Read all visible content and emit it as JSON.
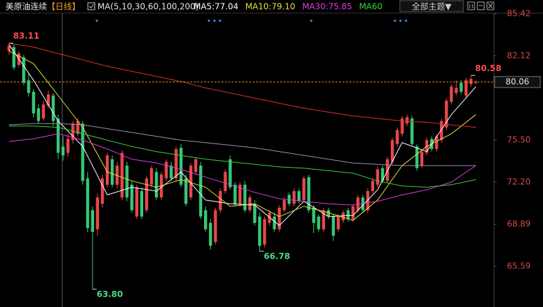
{
  "chart_data": {
    "type": "candlestick",
    "title": "美原油连续",
    "period": "【日线】",
    "ma_label": "MA(5,10,30,60,100,200)",
    "theme_button": "全部主题▼",
    "up_color": "#e8474a",
    "down_color": "#35c978",
    "open": [
      82.5,
      82.8,
      81.4,
      82.0,
      80.2,
      79.3,
      78.0,
      77.2,
      78.2,
      79.0,
      77.2,
      75.0,
      74.5,
      75.5,
      76.0,
      76.8,
      72.5,
      70.0,
      68.5,
      70.5,
      72.0,
      74.0,
      72.0,
      71.0,
      73.5,
      72.0,
      69.5,
      71.5,
      70.0,
      72.0,
      73.0,
      71.0,
      72.5,
      73.5,
      72.5,
      74.9,
      72.5,
      71.0,
      73.0,
      73.5,
      70.0,
      69.0,
      67.5,
      70.0,
      71.5,
      74.0,
      72.0,
      70.5,
      72.0,
      70.0,
      70.5,
      69.5,
      67.3,
      69.0,
      69.5,
      68.5,
      70.0,
      71.2,
      70.5,
      71.5,
      70.8,
      72.6,
      70.2,
      69.5,
      68.5,
      70.0,
      69.5,
      68.5,
      69.2,
      70.0,
      69.3,
      70.0,
      71.0,
      70.0,
      71.5,
      72.0,
      73.3,
      72.3,
      73.8,
      75.2,
      76.0,
      76.8,
      77.2,
      75.0,
      73.5,
      74.5,
      75.6,
      74.8,
      75.5,
      76.5,
      78.5,
      79.2,
      80.0,
      79.0,
      79.9,
      80.0
    ],
    "high": [
      83.11,
      83.0,
      82.5,
      82.2,
      80.8,
      79.5,
      78.3,
      78.6,
      79.4,
      79.2,
      77.5,
      75.8,
      76.0,
      77.0,
      77.2,
      77.0,
      73.0,
      70.3,
      71.3,
      72.8,
      74.5,
      74.3,
      73.8,
      74.7,
      73.8,
      72.3,
      72.0,
      71.8,
      72.7,
      73.5,
      73.3,
      73.0,
      74.0,
      73.8,
      75.0,
      75.2,
      72.8,
      73.7,
      74.2,
      73.8,
      70.3,
      69.3,
      70.2,
      71.7,
      73.2,
      74.3,
      72.2,
      72.2,
      72.3,
      71.2,
      70.8,
      69.8,
      69.5,
      70.0,
      69.8,
      70.4,
      71.0,
      71.4,
      71.7,
      71.7,
      72.7,
      72.8,
      70.4,
      69.7,
      70.2,
      70.2,
      69.7,
      69.7,
      70.0,
      70.2,
      70.5,
      71.2,
      71.2,
      71.7,
      72.5,
      73.4,
      73.5,
      74.2,
      75.7,
      76.5,
      77.4,
      77.5,
      77.4,
      75.2,
      74.8,
      75.7,
      75.8,
      76.0,
      77.2,
      78.8,
      79.9,
      80.2,
      80.2,
      80.4,
      80.58,
      80.2
    ],
    "low": [
      82.2,
      81.0,
      81.2,
      79.8,
      78.9,
      77.3,
      76.8,
      77.0,
      78.0,
      76.6,
      74.0,
      73.9,
      74.2,
      75.2,
      75.8,
      72.0,
      68.3,
      63.8,
      68.0,
      70.2,
      71.8,
      71.8,
      71.7,
      70.8,
      70.7,
      69.8,
      69.3,
      69.3,
      69.8,
      71.8,
      70.8,
      70.8,
      72.3,
      72.3,
      72.3,
      71.8,
      70.3,
      70.8,
      72.8,
      69.3,
      68.3,
      66.9,
      67.3,
      69.8,
      71.3,
      71.6,
      70.3,
      70.3,
      69.8,
      69.8,
      68.8,
      66.78,
      67.1,
      68.8,
      68.3,
      68.3,
      69.8,
      70.3,
      70.3,
      70.5,
      70.6,
      69.8,
      68.2,
      68.3,
      68.3,
      69.3,
      67.6,
      68.3,
      69.0,
      69.1,
      69.1,
      69.8,
      69.8,
      69.8,
      71.3,
      71.8,
      72.1,
      72.1,
      73.6,
      75.0,
      75.8,
      76.6,
      75.0,
      73.1,
      73.3,
      74.3,
      74.6,
      74.6,
      75.3,
      76.3,
      78.3,
      79.0,
      79.1,
      78.8,
      79.7,
      79.9
    ],
    "close": [
      82.9,
      81.2,
      82.3,
      80.0,
      79.2,
      77.6,
      77.0,
      78.3,
      79.1,
      77.0,
      74.5,
      74.3,
      75.6,
      76.8,
      77.0,
      72.3,
      68.6,
      68.3,
      71.0,
      72.5,
      74.3,
      72.0,
      73.5,
      74.5,
      71.0,
      70.0,
      71.8,
      69.5,
      72.5,
      73.3,
      71.0,
      72.8,
      73.8,
      72.5,
      74.8,
      72.0,
      70.5,
      73.5,
      74.0,
      69.5,
      68.5,
      67.2,
      70.0,
      71.5,
      73.0,
      71.8,
      70.5,
      72.0,
      70.0,
      71.0,
      69.0,
      67.2,
      69.3,
      69.8,
      68.5,
      70.2,
      70.8,
      70.5,
      71.5,
      70.7,
      72.5,
      70.0,
      69.0,
      68.5,
      70.0,
      69.5,
      68.0,
      69.5,
      69.8,
      69.3,
      70.3,
      71.0,
      70.0,
      71.5,
      72.3,
      73.2,
      72.3,
      74.0,
      75.5,
      76.3,
      77.2,
      77.3,
      75.2,
      73.3,
      74.6,
      75.5,
      74.8,
      75.8,
      77.0,
      78.6,
      79.7,
      79.6,
      79.3,
      80.2,
      80.3,
      80.06
    ],
    "ma_x": [
      0,
      5,
      10,
      15,
      20,
      25,
      30,
      35,
      40,
      45,
      50,
      55,
      60,
      65,
      70,
      75,
      80,
      85,
      90,
      95
    ],
    "series": [
      {
        "name": "MA5:77.04",
        "color": "#ffffff",
        "values": [
          83.0,
          80.2,
          77.0,
          75.0,
          71.2,
          71.8,
          71.5,
          73.0,
          70.8,
          70.5,
          70.4,
          68.8,
          70.7,
          69.5,
          69.6,
          71.6,
          75.3,
          74.6,
          77.5,
          79.7
        ]
      },
      {
        "name": "MA10:79.10",
        "color": "#e8e03a",
        "values": [
          82.5,
          81.5,
          79.0,
          76.5,
          73.0,
          72.3,
          71.8,
          72.4,
          71.8,
          70.3,
          70.5,
          69.5,
          70.3,
          69.8,
          69.2,
          70.8,
          73.5,
          75.0,
          76.0,
          77.5
        ]
      },
      {
        "name": "MA30:75.85",
        "color": "#e03ae0",
        "values": [
          75.4,
          75.6,
          76.0,
          75.5,
          74.8,
          74.0,
          73.7,
          73.2,
          72.6,
          72.0,
          71.4,
          70.9,
          70.7,
          70.5,
          70.4,
          70.7,
          71.2,
          71.6,
          72.2,
          73.5
        ]
      },
      {
        "name": "MA60",
        "color": "#3cd23c",
        "values": [
          76.6,
          76.6,
          76.5,
          76.0,
          75.5,
          75.0,
          74.6,
          74.3,
          74.0,
          73.8,
          73.6,
          73.4,
          73.3,
          73.1,
          72.9,
          72.3,
          71.9,
          71.8,
          72.0,
          72.4
        ]
      },
      {
        "color": "#9c8fb0",
        "values": [
          76.7,
          76.8,
          76.8,
          76.7,
          76.4,
          76.1,
          75.8,
          75.5,
          75.3,
          75.1,
          74.9,
          74.6,
          74.3,
          74.0,
          73.7,
          73.6,
          73.5,
          73.5,
          73.5,
          73.5
        ]
      },
      {
        "color": "#d8342a",
        "values": [
          83.1,
          82.8,
          82.3,
          81.8,
          81.3,
          80.9,
          80.5,
          80.1,
          79.6,
          79.2,
          78.8,
          78.4,
          78.0,
          77.7,
          77.4,
          77.2,
          77.0,
          76.9,
          76.7,
          76.5
        ]
      }
    ],
    "annotations": [
      {
        "x": 0,
        "value": 83.11,
        "color": "#ff4d4d"
      },
      {
        "x": 17,
        "value": 63.8,
        "label": "63.80",
        "color": "#4dd88a"
      },
      {
        "x": 51,
        "value": 66.78,
        "color": "#4dd88a"
      },
      {
        "x": 94,
        "value": 80.58,
        "color": "#ff4d4d"
      }
    ],
    "last_price": 80.06,
    "ylim": [
      62.4,
      85.85
    ],
    "yticks": [
      85.42,
      82.12,
      {
        "value": 75.5,
        "label": "75.50"
      },
      {
        "value": 72.2,
        "label": "72.20"
      },
      68.89,
      65.59
    ]
  }
}
